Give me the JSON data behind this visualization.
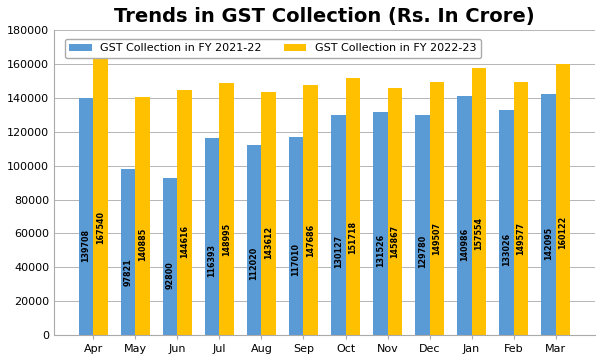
{
  "title": "Trends in GST Collection (Rs. In Crore)",
  "months": [
    "Apr",
    "May",
    "Jun",
    "Jul",
    "Aug",
    "Sep",
    "Oct",
    "Nov",
    "Dec",
    "Jan",
    "Feb",
    "Mar"
  ],
  "fy2122": [
    139708,
    97821,
    92800,
    116393,
    112020,
    117010,
    130127,
    131526,
    129780,
    140986,
    133026,
    142095
  ],
  "fy2223": [
    167540,
    140885,
    144616,
    148995,
    143612,
    147686,
    151718,
    145867,
    149507,
    157554,
    149577,
    160122
  ],
  "color_2122": "#5B9BD5",
  "color_2223": "#FFC000",
  "legend_2122": "GST Collection in FY 2021-22",
  "legend_2223": "GST Collection in FY 2022-23",
  "ylim": [
    0,
    180000
  ],
  "yticks": [
    0,
    20000,
    40000,
    60000,
    80000,
    100000,
    120000,
    140000,
    160000,
    180000
  ],
  "bar_width": 0.35,
  "label_fontsize": 5.8,
  "title_fontsize": 14,
  "tick_fontsize": 8,
  "legend_fontsize": 8,
  "figwidth": 6.02,
  "figheight": 3.61,
  "dpi": 100
}
